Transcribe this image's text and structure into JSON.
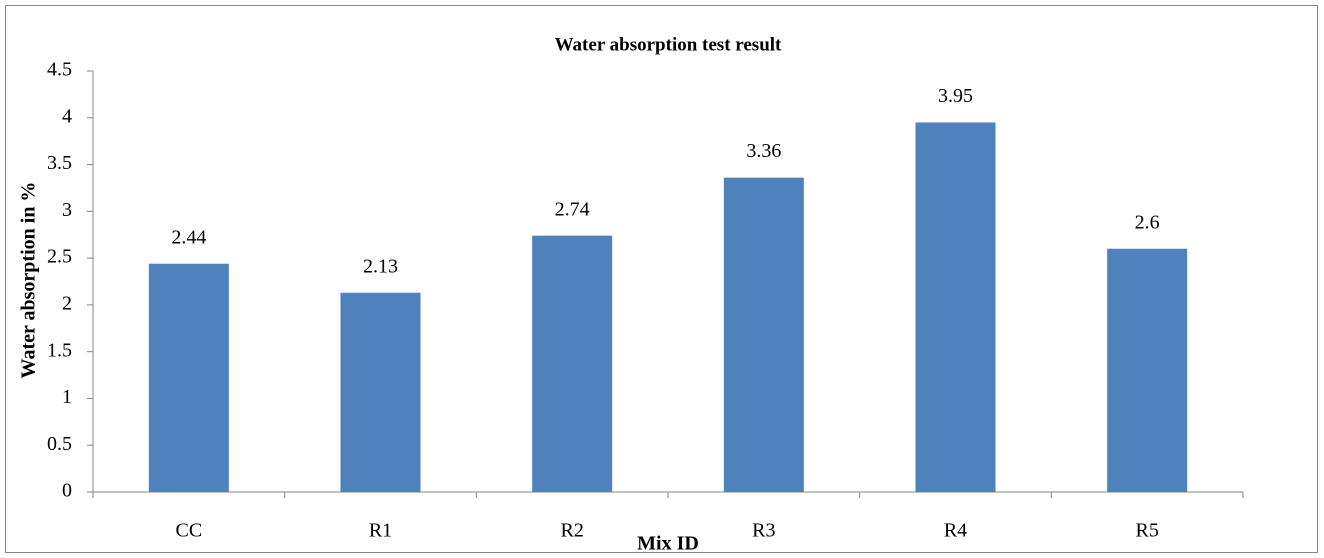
{
  "chart_data": {
    "type": "bar",
    "title": "Water absorption test result",
    "x_label": "Mix ID",
    "y_label": "Water absorption in %",
    "categories": [
      "CC",
      "R1",
      "R2",
      "R3",
      "R4",
      "R5"
    ],
    "values": [
      2.44,
      2.13,
      2.74,
      3.36,
      3.95,
      2.6
    ],
    "color": "#4f81bd",
    "ylim": [
      0,
      4.5
    ],
    "yticks": [
      0,
      0.5,
      1,
      1.5,
      2,
      2.5,
      3,
      3.5,
      4,
      4.5
    ],
    "grid": false
  }
}
